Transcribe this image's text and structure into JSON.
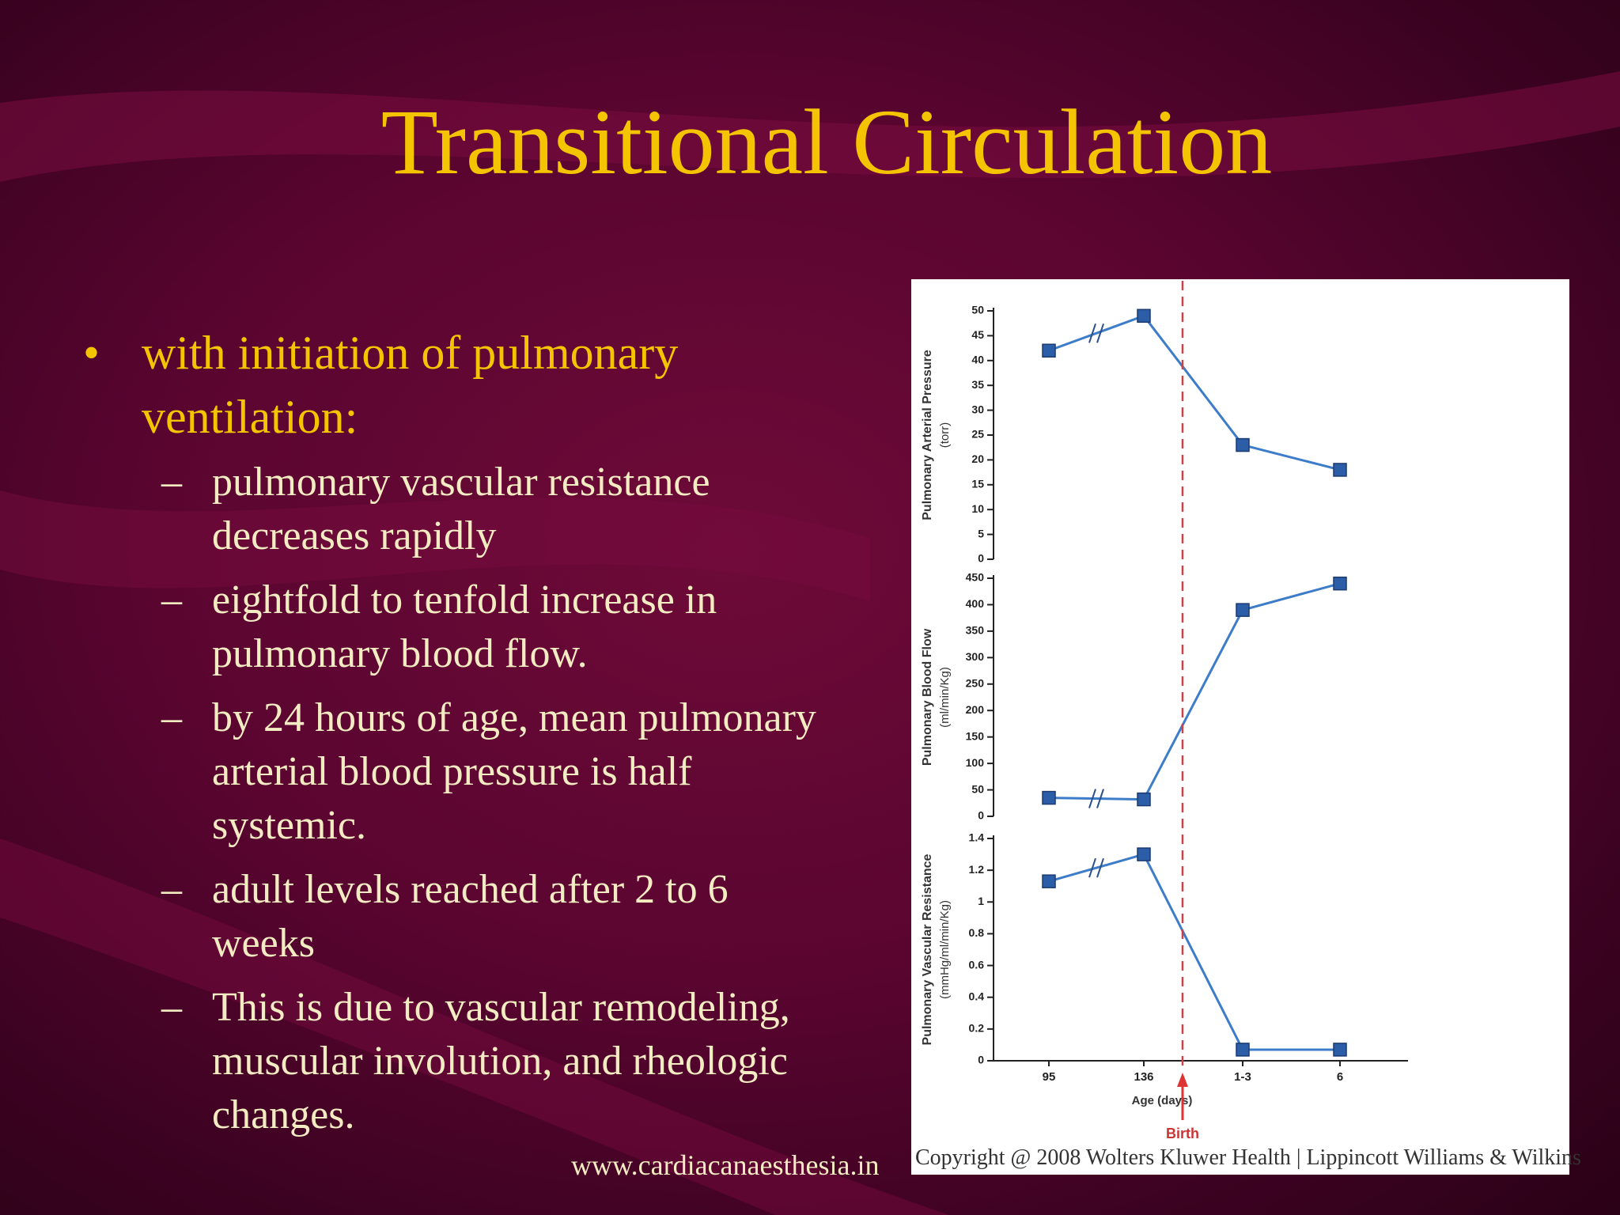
{
  "title": "Transitional Circulation",
  "bullets": [
    {
      "text": "with initiation of pulmonary ventilation:",
      "sub": [
        "pulmonary vascular resistance decreases rapidly",
        "eightfold to tenfold increase in pulmonary blood flow.",
        "by 24 hours of age, mean pulmonary arterial blood pressure is half systemic.",
        "adult levels reached after 2 to 6 weeks",
        "This is due to vascular remodeling, muscular involution, and rheologic changes."
      ]
    }
  ],
  "footer": "www.cardiacanaesthesia.in",
  "copyright": "Copyright @ 2008 Wolters Kluwer Health | Lippincott Williams & Wilkins",
  "chart_data": [
    {
      "type": "line",
      "ylabel": "Pulmonary Arterial Pressure",
      "yunits": "(torr)",
      "values": [
        42,
        49,
        23,
        18
      ],
      "color": "#2b5ea7",
      "ylim": [
        0,
        50
      ],
      "yticks": [
        0,
        5,
        10,
        15,
        20,
        25,
        30,
        35,
        40,
        45,
        50
      ]
    },
    {
      "type": "line",
      "ylabel": "Pulmonary Blood Flow",
      "yunits": "(ml/min/Kg)",
      "values": [
        35,
        32,
        390,
        440
      ],
      "color": "#2b5ea7",
      "ylim": [
        0,
        450
      ],
      "yticks": [
        0,
        50,
        100,
        150,
        200,
        250,
        300,
        350,
        400,
        450
      ]
    },
    {
      "type": "line",
      "ylabel": "Pulmonary Vascular Resistance",
      "yunits": "(mmHg/ml/min/Kg)",
      "categories": [
        "95",
        "136",
        "1-3",
        "6"
      ],
      "xlabel": "Age (days)",
      "annotation": "Birth",
      "values": [
        1.13,
        1.3,
        0.07,
        0.07
      ],
      "color": "#2b5ea7",
      "ylim": [
        0,
        1.4
      ],
      "yticks": [
        0,
        0.2,
        0.4,
        0.6,
        0.8,
        1,
        1.2,
        1.4
      ]
    }
  ]
}
